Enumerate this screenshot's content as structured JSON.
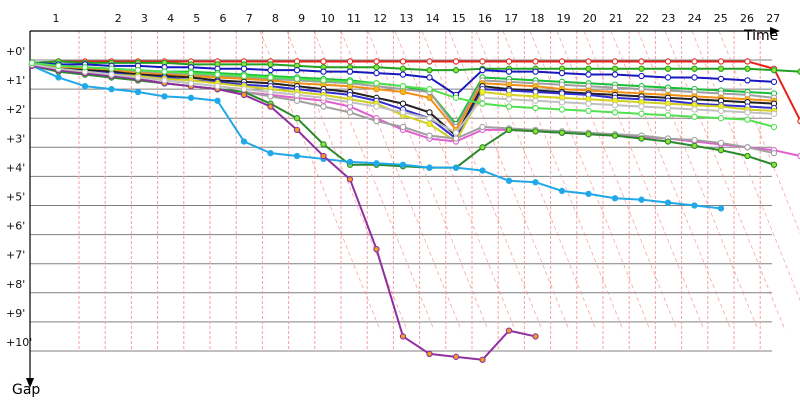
{
  "chart_data": {
    "type": "line",
    "title": "",
    "xlabel": "Time",
    "ylabel": "Gap",
    "x_ticks": [
      "1",
      "2",
      "3",
      "4",
      "5",
      "6",
      "7",
      "8",
      "9",
      "10",
      "11",
      "12",
      "13",
      "14",
      "15",
      "16",
      "17",
      "18",
      "19",
      "20",
      "21",
      "22",
      "23",
      "24",
      "25",
      "26",
      "27"
    ],
    "y_ticks": [
      "+0'",
      "+1'",
      "+2'",
      "+3'",
      "+4'",
      "+5'",
      "+6'",
      "+7'",
      "+8'",
      "+9'",
      "+10'"
    ],
    "ylim": [
      0,
      10
    ],
    "y_inverted": true,
    "grid": true,
    "pit_lines": true,
    "series": [
      {
        "color": "#e8201a",
        "marker": "#ffffff",
        "values": [
          0.1,
          0.05,
          0.05,
          0.05,
          0.05,
          0.05,
          0.05,
          0.05,
          0.05,
          0.05,
          0.05,
          0.05,
          0.05,
          0.05,
          0.05,
          0.05,
          0.05,
          0.05,
          0.05,
          0.05,
          0.05,
          0.05,
          0.05,
          0.05,
          0.05,
          0.05,
          0.05,
          0.05,
          0.3,
          2.1
        ]
      },
      {
        "color": "#22a022",
        "marker": "#8ee23a",
        "values": [
          0.1,
          0.05,
          0.1,
          0.1,
          0.1,
          0.1,
          0.15,
          0.15,
          0.15,
          0.15,
          0.2,
          0.25,
          0.25,
          0.25,
          0.3,
          0.35,
          0.35,
          0.3,
          0.3,
          0.3,
          0.3,
          0.3,
          0.3,
          0.3,
          0.3,
          0.3,
          0.3,
          0.3,
          0.35,
          0.4
        ]
      },
      {
        "color": "#1818c0",
        "marker": "#ffffff",
        "values": [
          0.1,
          0.15,
          0.15,
          0.2,
          0.2,
          0.25,
          0.25,
          0.3,
          0.3,
          0.35,
          0.35,
          0.4,
          0.4,
          0.45,
          0.5,
          0.6,
          1.2,
          0.35,
          0.4,
          0.4,
          0.45,
          0.5,
          0.5,
          0.55,
          0.6,
          0.6,
          0.65,
          0.7,
          0.75
        ]
      },
      {
        "color": "#18c038",
        "marker": "#ffffff",
        "values": [
          0.15,
          0.2,
          0.25,
          0.3,
          0.35,
          0.4,
          0.4,
          0.45,
          0.5,
          0.55,
          0.6,
          0.65,
          0.7,
          0.8,
          0.9,
          1.1,
          2.2,
          0.6,
          0.65,
          0.7,
          0.75,
          0.8,
          0.85,
          0.9,
          0.95,
          1.0,
          1.05,
          1.1,
          1.15
        ]
      },
      {
        "color": "#a0a0a0",
        "marker": "#ffffff",
        "values": [
          0.15,
          0.25,
          0.3,
          0.35,
          0.4,
          0.45,
          0.5,
          0.55,
          0.6,
          0.65,
          0.7,
          0.75,
          0.8,
          0.9,
          1.0,
          1.1,
          2.3,
          0.7,
          0.75,
          0.8,
          0.85,
          0.9,
          0.95,
          1.0,
          1.05,
          1.1,
          1.15,
          1.2,
          1.3
        ]
      },
      {
        "color": "#f09018",
        "marker": "#f0c020",
        "values": [
          0.15,
          0.25,
          0.3,
          0.35,
          0.45,
          0.5,
          0.55,
          0.6,
          0.65,
          0.7,
          0.8,
          0.85,
          0.9,
          1.0,
          1.1,
          1.3,
          2.4,
          0.8,
          0.85,
          0.9,
          1.0,
          1.05,
          1.1,
          1.15,
          1.2,
          1.25,
          1.3,
          1.35,
          1.4
        ]
      },
      {
        "color": "#202020",
        "marker": "#ffffff",
        "values": [
          0.15,
          0.3,
          0.35,
          0.4,
          0.5,
          0.55,
          0.6,
          0.7,
          0.75,
          0.8,
          0.9,
          1.0,
          1.1,
          1.3,
          1.5,
          1.8,
          2.6,
          0.9,
          1.0,
          1.05,
          1.1,
          1.15,
          1.2,
          1.25,
          1.3,
          1.35,
          1.4,
          1.45,
          1.5
        ]
      },
      {
        "color": "#3030d0",
        "marker": "#ffffff",
        "values": [
          0.2,
          0.3,
          0.4,
          0.45,
          0.55,
          0.6,
          0.7,
          0.75,
          0.85,
          0.9,
          1.0,
          1.1,
          1.2,
          1.4,
          1.7,
          2.0,
          2.7,
          1.0,
          1.05,
          1.1,
          1.15,
          1.2,
          1.3,
          1.35,
          1.4,
          1.5,
          1.55,
          1.6,
          1.65
        ]
      },
      {
        "color": "#d0d020",
        "marker": "#f0f030",
        "values": [
          0.2,
          0.35,
          0.4,
          0.5,
          0.55,
          0.65,
          0.7,
          0.8,
          0.9,
          1.0,
          1.1,
          1.2,
          1.35,
          1.5,
          1.9,
          2.2,
          2.8,
          1.1,
          1.2,
          1.25,
          1.3,
          1.35,
          1.4,
          1.45,
          1.5,
          1.55,
          1.6,
          1.7,
          1.75
        ]
      },
      {
        "color": "#e060d0",
        "marker": "#ffffff",
        "values": [
          0.2,
          0.4,
          0.5,
          0.6,
          0.7,
          0.8,
          0.9,
          1.0,
          1.1,
          1.2,
          1.3,
          1.4,
          1.6,
          2.0,
          2.4,
          2.7,
          2.8,
          2.4,
          2.4,
          2.45,
          2.5,
          2.55,
          2.6,
          2.65,
          2.7,
          2.8,
          2.9,
          3.0,
          3.1,
          3.3
        ]
      },
      {
        "color": "#a0a0a0",
        "marker": "#ffffff",
        "values": [
          0.2,
          0.4,
          0.5,
          0.6,
          0.7,
          0.8,
          0.9,
          1.0,
          1.1,
          1.25,
          1.4,
          1.6,
          1.8,
          2.1,
          2.3,
          2.6,
          2.7,
          2.3,
          2.35,
          2.4,
          2.45,
          2.5,
          2.55,
          2.6,
          2.7,
          2.75,
          2.85,
          3.0,
          3.2
        ]
      },
      {
        "color": "#2a8a2a",
        "marker": "#8ee23a",
        "values": [
          0.2,
          0.4,
          0.5,
          0.6,
          0.7,
          0.8,
          0.9,
          1.0,
          1.1,
          1.5,
          2.0,
          2.9,
          3.6,
          3.6,
          3.65,
          3.7,
          3.7,
          3.0,
          2.4,
          2.45,
          2.5,
          2.55,
          2.6,
          2.7,
          2.8,
          2.95,
          3.1,
          3.3,
          3.6
        ]
      },
      {
        "color": "#20a8e8",
        "marker": "#20a8e8",
        "values": [
          0.2,
          0.6,
          0.9,
          1.0,
          1.1,
          1.25,
          1.3,
          1.4,
          2.8,
          3.2,
          3.3,
          3.4,
          3.5,
          3.55,
          3.6,
          3.7,
          3.7,
          3.8,
          4.15,
          4.2,
          4.5,
          4.6,
          4.75,
          4.8,
          4.9,
          5.0,
          5.1
        ]
      },
      {
        "color": "#9030a0",
        "marker": "#f0a020",
        "values": [
          0.2,
          0.35,
          0.45,
          0.55,
          0.65,
          0.8,
          0.9,
          1.0,
          1.2,
          1.6,
          2.4,
          3.3,
          4.1,
          6.5,
          9.5,
          10.1,
          10.2,
          10.3,
          9.3,
          9.5
        ]
      },
      {
        "color": "#c0c0c0",
        "marker": "#ffffff",
        "values": [
          0.15,
          0.3,
          0.4,
          0.5,
          0.6,
          0.7,
          0.8,
          0.9,
          1.0,
          1.1,
          1.2,
          1.3,
          1.45,
          1.6,
          1.8,
          2.0,
          2.5,
          1.3,
          1.35,
          1.4,
          1.45,
          1.5,
          1.55,
          1.6,
          1.65,
          1.7,
          1.75,
          1.8,
          1.85
        ]
      },
      {
        "color": "#50e050",
        "marker": "#ffffff",
        "values": [
          0.1,
          0.2,
          0.25,
          0.3,
          0.35,
          0.4,
          0.45,
          0.5,
          0.55,
          0.6,
          0.65,
          0.7,
          0.75,
          0.8,
          0.9,
          1.0,
          1.3,
          1.5,
          1.6,
          1.65,
          1.7,
          1.75,
          1.8,
          1.85,
          1.9,
          1.95,
          2.0,
          2.05,
          2.3
        ]
      }
    ]
  }
}
